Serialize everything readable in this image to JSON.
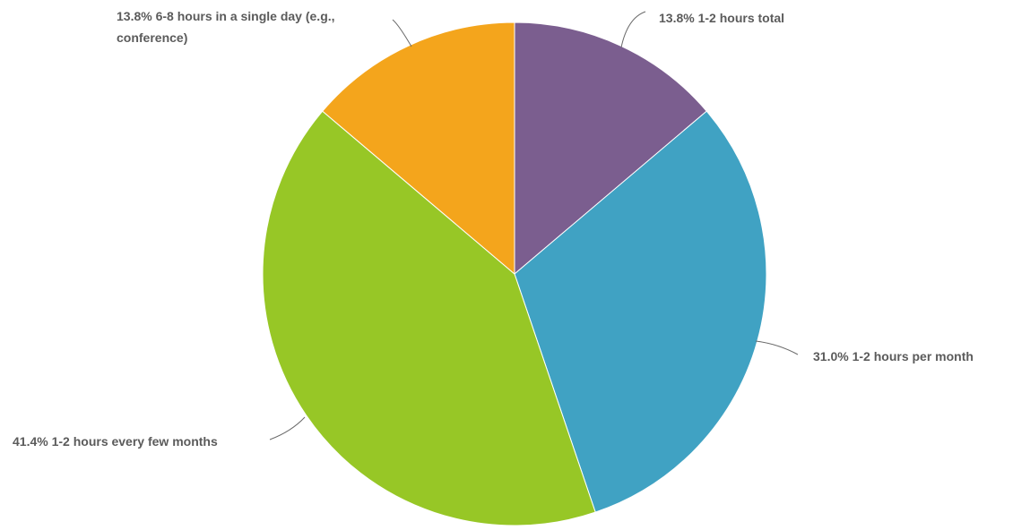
{
  "chart_data": {
    "type": "pie",
    "start_angle_deg": 0,
    "direction": "clockwise",
    "slices": [
      {
        "label": "1-2 hours total",
        "value": 13.8,
        "pct_label": "13.8%",
        "color": "#7b5e8f"
      },
      {
        "label": "1-2 hours per month",
        "value": 31.0,
        "pct_label": "31.0%",
        "color": "#40a2c3"
      },
      {
        "label": "1-2 hours every few months",
        "value": 41.4,
        "pct_label": "41.4%",
        "color": "#97c726"
      },
      {
        "label": "6-8 hours in a single day (e.g., conference)",
        "value": 13.8,
        "pct_label": "13.8%",
        "color": "#f4a51c"
      }
    ]
  }
}
